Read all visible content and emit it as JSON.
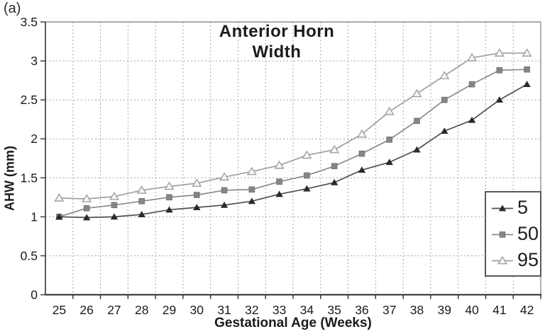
{
  "figure_label": "(a)",
  "chart_data": {
    "type": "line",
    "title": "Anterior Horn Width",
    "title_lines": [
      "Anterior Horn",
      "Width"
    ],
    "xlabel": "Gestational Age (Weeks)",
    "ylabel": "AHW (mm)",
    "x": [
      25,
      26,
      27,
      28,
      29,
      30,
      31,
      32,
      33,
      34,
      35,
      36,
      37,
      38,
      39,
      40,
      41,
      42
    ],
    "ylim": [
      0,
      3.5
    ],
    "ytick_step": 0.5,
    "ytick_labels": [
      "0",
      "0.5",
      "1",
      "1.5",
      "2",
      "2.5",
      "3",
      "3.5"
    ],
    "grid": true,
    "legend_position": "inside-right",
    "colors": {
      "axis": "#2a2a2a",
      "gridline": "#a6a6a6",
      "plot_border": "#8f8f8f",
      "text": "#1b1b1b"
    },
    "series": [
      {
        "name": "5",
        "marker": "filled-triangle",
        "line_color": "#4f4f4f",
        "marker_color": "#2a2a2a",
        "values": [
          1.0,
          0.99,
          1.0,
          1.03,
          1.09,
          1.12,
          1.15,
          1.2,
          1.29,
          1.36,
          1.44,
          1.6,
          1.7,
          1.86,
          2.1,
          2.24,
          2.5,
          2.7
        ]
      },
      {
        "name": "50",
        "marker": "filled-square",
        "line_color": "#8a8a8a",
        "marker_color": "#868686",
        "values": [
          1.0,
          1.11,
          1.15,
          1.2,
          1.25,
          1.28,
          1.34,
          1.35,
          1.45,
          1.53,
          1.65,
          1.81,
          1.99,
          2.23,
          2.5,
          2.7,
          2.88,
          2.89
        ]
      },
      {
        "name": "95",
        "marker": "open-triangle",
        "line_color": "#a0a0a0",
        "marker_color": "#f7f7f7",
        "values": [
          1.24,
          1.23,
          1.26,
          1.34,
          1.39,
          1.43,
          1.51,
          1.58,
          1.66,
          1.79,
          1.86,
          2.06,
          2.35,
          2.58,
          2.81,
          3.04,
          3.1,
          3.1
        ]
      }
    ]
  }
}
